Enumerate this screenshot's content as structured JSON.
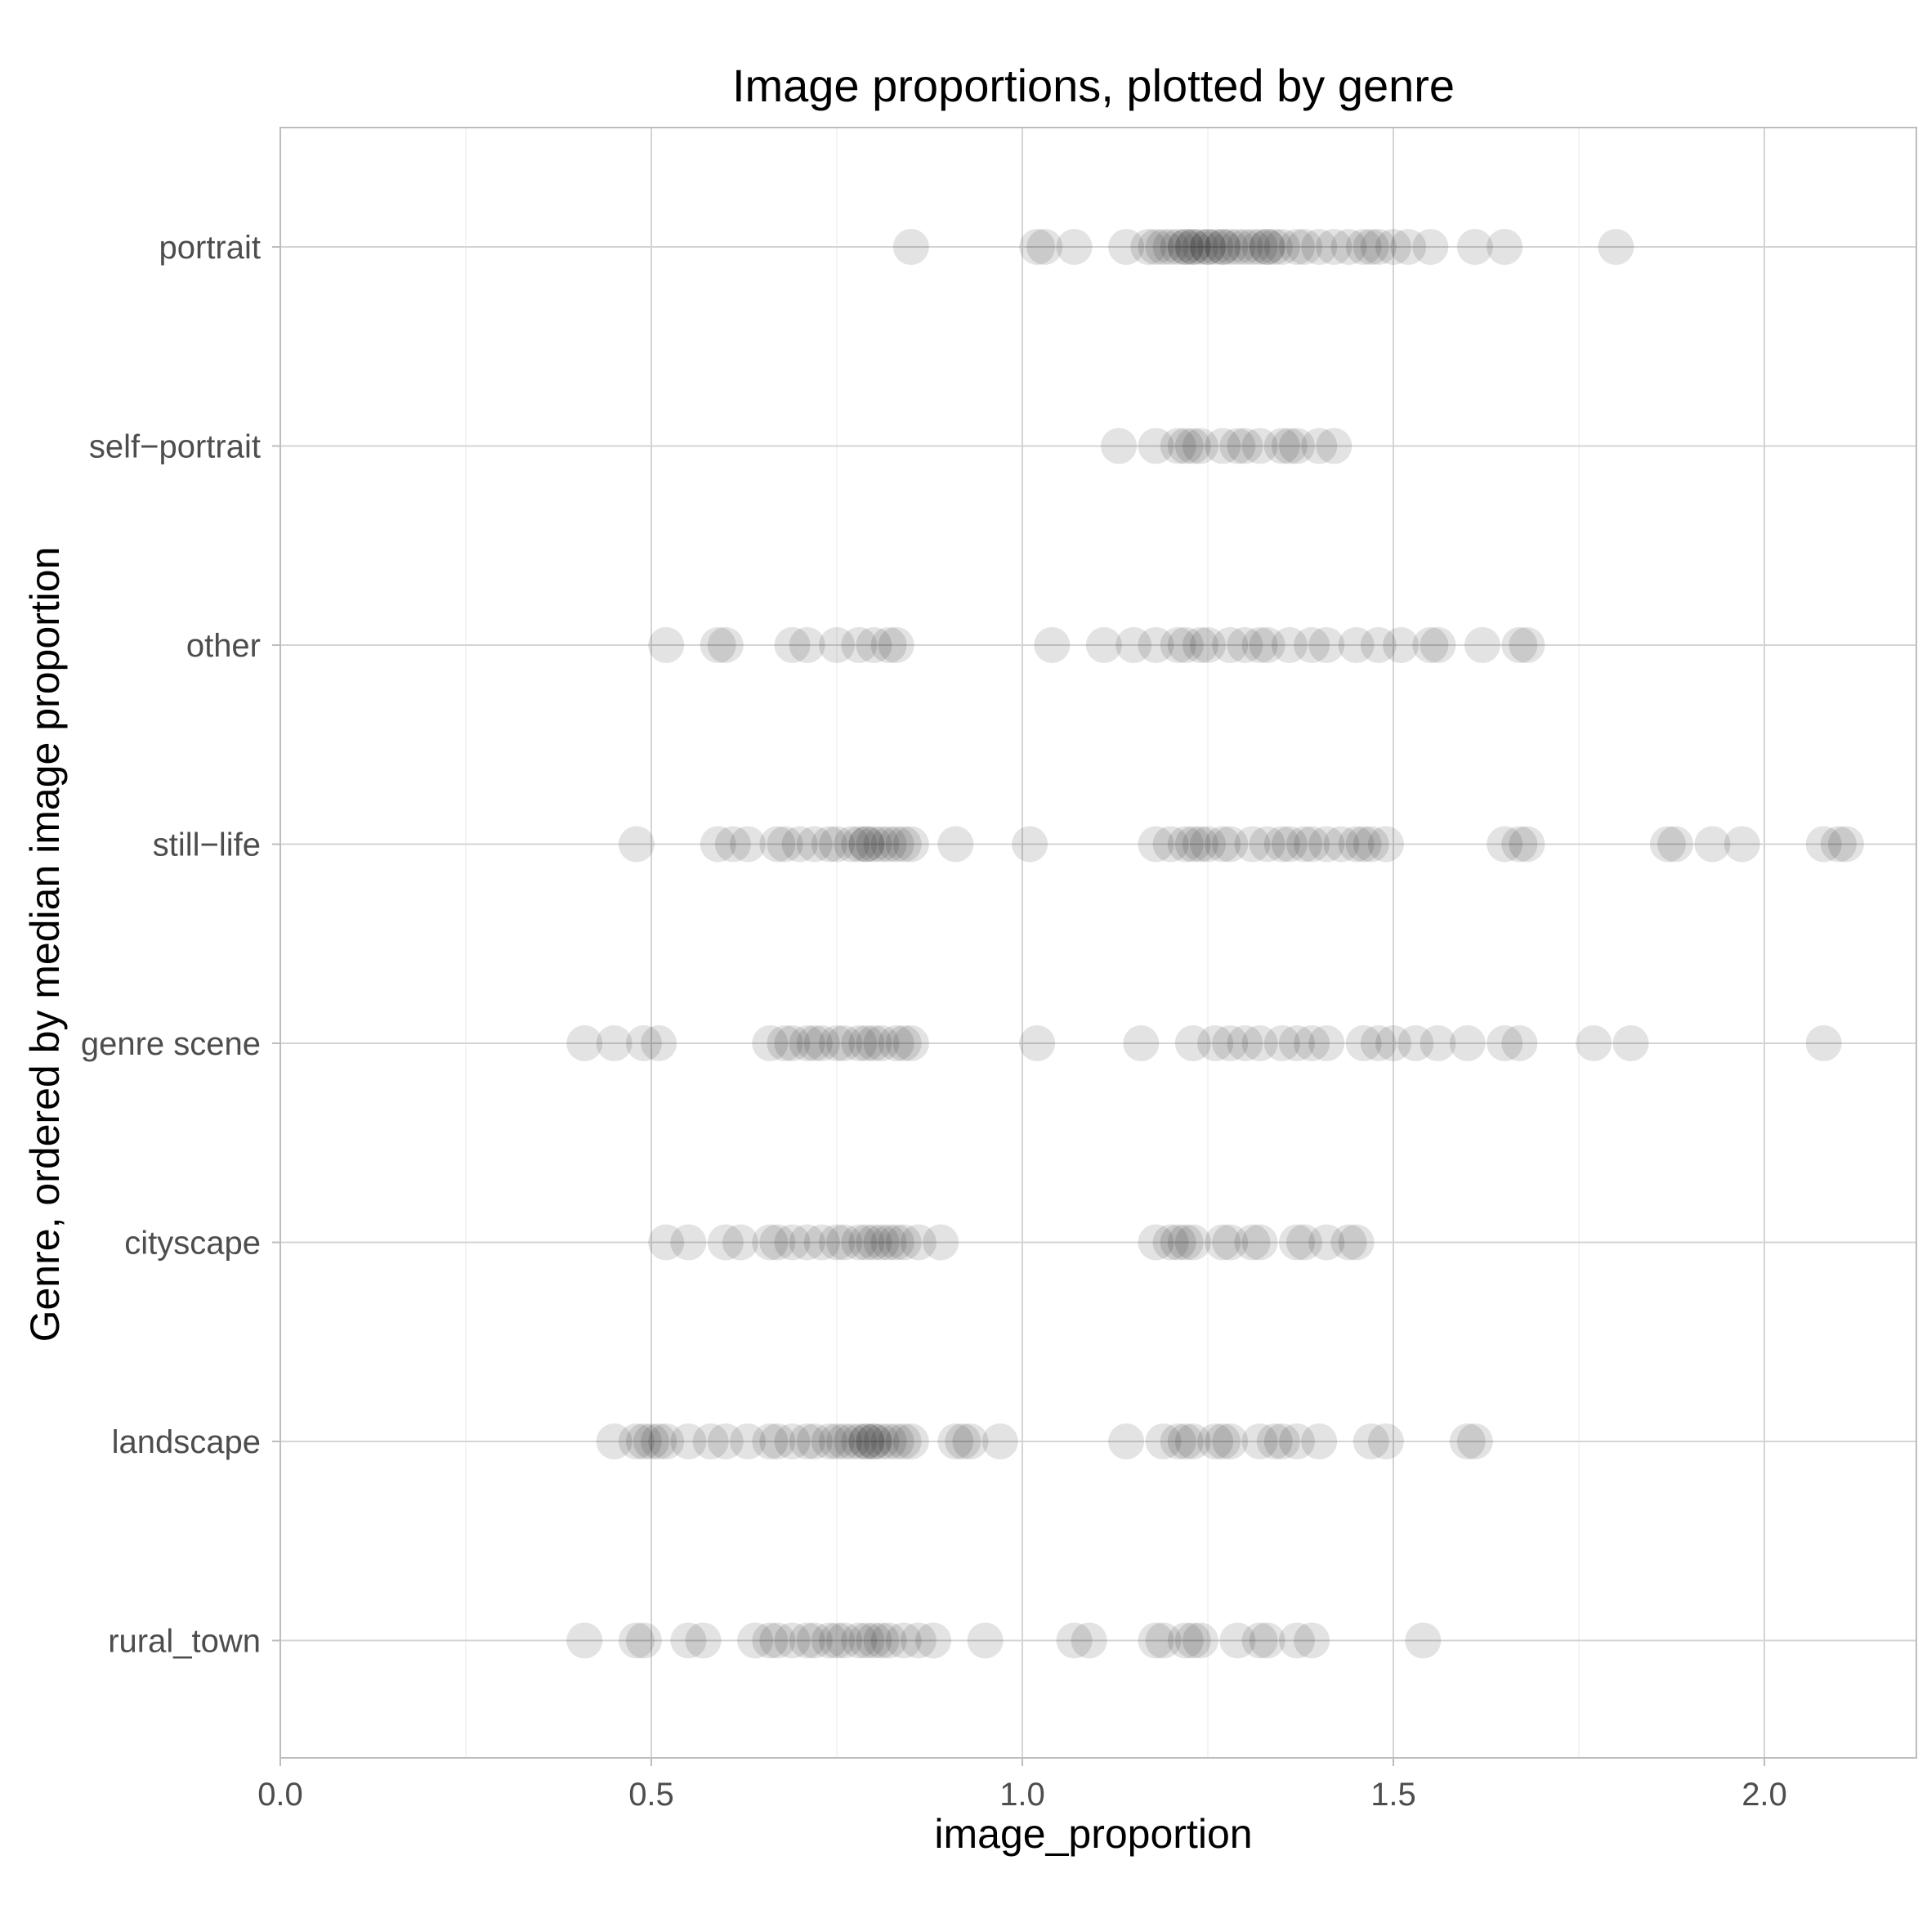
{
  "chart_data": {
    "type": "scatter",
    "title": "Image proportions, plotted by genre",
    "xlabel": "image_proportion",
    "ylabel": "Genre, ordered by median image proportion",
    "xlim": [
      0.0,
      2.2
    ],
    "x_ticks": [
      "0.0",
      "0.5",
      "1.0",
      "1.5",
      "2.0"
    ],
    "x_tick_values": [
      0.0,
      0.5,
      1.0,
      1.5,
      2.0
    ],
    "grid": true,
    "legend": "none",
    "point_color": "#000000",
    "point_opacity": 0.11,
    "categories": [
      "portrait",
      "self−portrait",
      "other",
      "still−life",
      "genre scene",
      "cityscape",
      "landscape",
      "rural_town"
    ],
    "series": [
      {
        "name": "portrait",
        "x": [
          0.85,
          1.02,
          1.03,
          1.07,
          1.14,
          1.17,
          1.18,
          1.19,
          1.2,
          1.21,
          1.22,
          1.22,
          1.23,
          1.23,
          1.24,
          1.25,
          1.25,
          1.26,
          1.27,
          1.27,
          1.28,
          1.29,
          1.3,
          1.31,
          1.32,
          1.33,
          1.33,
          1.34,
          1.35,
          1.37,
          1.38,
          1.4,
          1.42,
          1.44,
          1.46,
          1.47,
          1.48,
          1.5,
          1.52,
          1.55,
          1.61,
          1.65,
          1.8
        ]
      },
      {
        "name": "self−portrait",
        "x": [
          1.13,
          1.18,
          1.21,
          1.22,
          1.23,
          1.24,
          1.27,
          1.29,
          1.3,
          1.32,
          1.35,
          1.36,
          1.37,
          1.4,
          1.42
        ]
      },
      {
        "name": "other",
        "x": [
          0.52,
          0.59,
          0.6,
          0.69,
          0.71,
          0.75,
          0.78,
          0.8,
          0.82,
          0.83,
          1.04,
          1.11,
          1.15,
          1.18,
          1.21,
          1.22,
          1.24,
          1.25,
          1.28,
          1.3,
          1.32,
          1.33,
          1.36,
          1.39,
          1.41,
          1.45,
          1.48,
          1.51,
          1.55,
          1.56,
          1.62,
          1.67,
          1.68
        ]
      },
      {
        "name": "still−life",
        "x": [
          0.48,
          0.59,
          0.61,
          0.63,
          0.67,
          0.68,
          0.7,
          0.72,
          0.74,
          0.75,
          0.77,
          0.78,
          0.79,
          0.79,
          0.8,
          0.81,
          0.82,
          0.83,
          0.84,
          0.85,
          0.91,
          1.01,
          1.18,
          1.2,
          1.22,
          1.23,
          1.24,
          1.25,
          1.27,
          1.28,
          1.31,
          1.33,
          1.35,
          1.36,
          1.38,
          1.39,
          1.41,
          1.43,
          1.45,
          1.46,
          1.47,
          1.49,
          1.65,
          1.67,
          1.68,
          1.87,
          1.88,
          1.93,
          1.97,
          2.08,
          2.1,
          2.11
        ]
      },
      {
        "name": "genre scene",
        "x": [
          0.41,
          0.45,
          0.49,
          0.51,
          0.66,
          0.68,
          0.69,
          0.71,
          0.72,
          0.73,
          0.75,
          0.76,
          0.78,
          0.79,
          0.8,
          0.81,
          0.83,
          0.84,
          0.85,
          1.02,
          1.16,
          1.23,
          1.26,
          1.28,
          1.3,
          1.32,
          1.35,
          1.37,
          1.39,
          1.41,
          1.46,
          1.48,
          1.5,
          1.53,
          1.56,
          1.6,
          1.65,
          1.67,
          1.77,
          1.82,
          2.08
        ]
      },
      {
        "name": "cityscape",
        "x": [
          0.52,
          0.55,
          0.6,
          0.62,
          0.66,
          0.67,
          0.69,
          0.71,
          0.73,
          0.75,
          0.76,
          0.78,
          0.79,
          0.8,
          0.81,
          0.82,
          0.83,
          0.84,
          0.86,
          0.89,
          1.18,
          1.2,
          1.21,
          1.22,
          1.23,
          1.27,
          1.28,
          1.31,
          1.32,
          1.37,
          1.38,
          1.41,
          1.44,
          1.45
        ]
      },
      {
        "name": "landscape",
        "x": [
          0.45,
          0.48,
          0.49,
          0.5,
          0.51,
          0.52,
          0.55,
          0.58,
          0.6,
          0.63,
          0.66,
          0.67,
          0.69,
          0.71,
          0.72,
          0.74,
          0.75,
          0.76,
          0.77,
          0.78,
          0.79,
          0.79,
          0.8,
          0.8,
          0.81,
          0.82,
          0.83,
          0.84,
          0.85,
          0.91,
          0.92,
          0.93,
          0.97,
          1.14,
          1.19,
          1.21,
          1.22,
          1.23,
          1.26,
          1.27,
          1.28,
          1.32,
          1.34,
          1.35,
          1.37,
          1.4,
          1.47,
          1.49,
          1.6,
          1.61
        ]
      },
      {
        "name": "rural_town",
        "x": [
          0.41,
          0.48,
          0.49,
          0.55,
          0.57,
          0.64,
          0.66,
          0.67,
          0.69,
          0.71,
          0.72,
          0.74,
          0.75,
          0.76,
          0.78,
          0.79,
          0.8,
          0.81,
          0.82,
          0.84,
          0.86,
          0.88,
          0.95,
          1.07,
          1.09,
          1.18,
          1.19,
          1.22,
          1.23,
          1.24,
          1.29,
          1.32,
          1.33,
          1.37,
          1.39,
          1.54
        ]
      }
    ]
  }
}
